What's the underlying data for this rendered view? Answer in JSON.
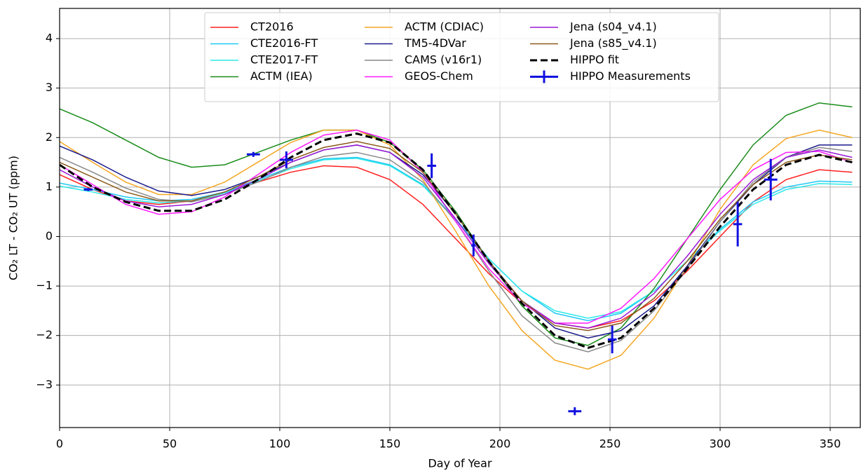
{
  "chart_data": {
    "type": "line",
    "x_label": "Day of Year",
    "y_label": "CO₂ LT - CO₂ UT (ppm)",
    "x": [
      0,
      15,
      30,
      45,
      60,
      75,
      90,
      105,
      120,
      135,
      150,
      165,
      180,
      195,
      210,
      225,
      240,
      255,
      270,
      285,
      300,
      315,
      330,
      345,
      360
    ],
    "series": [
      {
        "name": "CT2016",
        "color": "#ff2020",
        "values": [
          1.25,
          0.95,
          0.72,
          0.65,
          0.72,
          0.9,
          1.1,
          1.3,
          1.43,
          1.4,
          1.15,
          0.65,
          -0.05,
          -0.75,
          -1.35,
          -1.75,
          -1.85,
          -1.7,
          -1.3,
          -0.7,
          0.0,
          0.7,
          1.15,
          1.35,
          1.3
        ]
      },
      {
        "name": "CTE2016-FT",
        "color": "#1ec8f5",
        "values": [
          1.08,
          0.95,
          0.8,
          0.72,
          0.75,
          0.9,
          1.15,
          1.4,
          1.57,
          1.6,
          1.45,
          1.05,
          0.35,
          -0.45,
          -1.1,
          -1.55,
          -1.7,
          -1.55,
          -1.1,
          -0.5,
          0.15,
          0.7,
          1.0,
          1.12,
          1.1
        ]
      },
      {
        "name": "CTE2017-FT",
        "color": "#2ee8e8",
        "values": [
          1.02,
          0.9,
          0.75,
          0.68,
          0.72,
          0.88,
          1.12,
          1.37,
          1.55,
          1.58,
          1.43,
          1.03,
          0.33,
          -0.45,
          -1.1,
          -1.5,
          -1.65,
          -1.52,
          -1.1,
          -0.5,
          0.12,
          0.65,
          0.95,
          1.07,
          1.05
        ]
      },
      {
        "name": "ACTM (IEA)",
        "color": "#1a8c1a",
        "values": [
          2.58,
          2.3,
          1.95,
          1.6,
          1.4,
          1.45,
          1.7,
          1.95,
          2.15,
          2.15,
          1.9,
          1.35,
          0.5,
          -0.5,
          -1.4,
          -2.05,
          -2.2,
          -1.85,
          -1.05,
          -0.05,
          0.95,
          1.85,
          2.45,
          2.7,
          2.62
        ]
      },
      {
        "name": "ACTM (CDIAC)",
        "color": "#f5a623",
        "values": [
          1.92,
          1.5,
          1.1,
          0.85,
          0.85,
          1.1,
          1.5,
          1.9,
          2.15,
          2.15,
          1.85,
          1.15,
          0.1,
          -1.0,
          -1.9,
          -2.5,
          -2.68,
          -2.4,
          -1.65,
          -0.6,
          0.55,
          1.45,
          1.98,
          2.15,
          2.0
        ]
      },
      {
        "name": "TM5-4DVar",
        "color": "#1a1a8c",
        "values": [
          1.83,
          1.55,
          1.2,
          0.92,
          0.83,
          0.95,
          1.2,
          1.5,
          1.75,
          1.85,
          1.7,
          1.25,
          0.45,
          -0.5,
          -1.3,
          -1.85,
          -2.05,
          -1.9,
          -1.4,
          -0.6,
          0.3,
          1.05,
          1.6,
          1.85,
          1.85
        ]
      },
      {
        "name": "CAMS (v16r1)",
        "color": "#888888",
        "values": [
          1.6,
          1.3,
          0.98,
          0.75,
          0.7,
          0.85,
          1.1,
          1.4,
          1.62,
          1.7,
          1.55,
          1.1,
          0.3,
          -0.7,
          -1.6,
          -2.15,
          -2.33,
          -2.1,
          -1.5,
          -0.65,
          0.3,
          1.1,
          1.6,
          1.8,
          1.72
        ]
      },
      {
        "name": "GEOS-Chem",
        "color": "#ff1aff",
        "values": [
          1.45,
          1.05,
          0.65,
          0.45,
          0.5,
          0.8,
          1.25,
          1.7,
          2.05,
          2.15,
          1.95,
          1.3,
          0.3,
          -0.65,
          -1.35,
          -1.75,
          -1.75,
          -1.45,
          -0.85,
          -0.05,
          0.75,
          1.35,
          1.7,
          1.72,
          1.5
        ]
      },
      {
        "name": "Jena (s04_v4.1)",
        "color": "#9a1ad6",
        "values": [
          1.35,
          1.0,
          0.72,
          0.6,
          0.65,
          0.85,
          1.15,
          1.5,
          1.75,
          1.85,
          1.7,
          1.2,
          0.35,
          -0.55,
          -1.3,
          -1.75,
          -1.85,
          -1.65,
          -1.15,
          -0.4,
          0.45,
          1.15,
          1.6,
          1.75,
          1.6
        ]
      },
      {
        "name": "Jena (s85_v4.1)",
        "color": "#8b5a1a",
        "values": [
          1.5,
          1.2,
          0.9,
          0.72,
          0.72,
          0.9,
          1.2,
          1.55,
          1.8,
          1.92,
          1.78,
          1.3,
          0.45,
          -0.5,
          -1.3,
          -1.8,
          -1.9,
          -1.75,
          -1.25,
          -0.5,
          0.35,
          1.05,
          1.5,
          1.65,
          1.55
        ]
      },
      {
        "name": "HIPPO fit",
        "color": "#000000",
        "dashed": true,
        "values": [
          1.45,
          1.0,
          0.7,
          0.52,
          0.52,
          0.75,
          1.15,
          1.6,
          1.95,
          2.08,
          1.9,
          1.35,
          0.45,
          -0.5,
          -1.35,
          -2.0,
          -2.25,
          -2.05,
          -1.45,
          -0.65,
          0.2,
          0.95,
          1.45,
          1.65,
          1.5
        ]
      }
    ],
    "points": {
      "name": "HIPPO Measurements",
      "color": "#1010e0",
      "x": [
        13,
        88,
        103,
        169,
        188,
        234,
        251,
        308,
        323
      ],
      "y": [
        0.95,
        1.66,
        1.55,
        1.43,
        -0.18,
        -3.53,
        -2.08,
        0.25,
        1.15
      ],
      "yerr": [
        0.03,
        0.05,
        0.17,
        0.25,
        0.22,
        0.08,
        0.28,
        0.45,
        0.42
      ],
      "xerr": [
        2,
        3,
        3,
        2,
        1,
        3,
        2,
        2,
        3
      ]
    },
    "xlim": [
      0,
      364
    ],
    "ylim": [
      -3.86,
      4.61
    ],
    "xticks": [
      0,
      50,
      100,
      150,
      200,
      250,
      300,
      350
    ],
    "yticks": [
      {
        "value": -3,
        "label": "−3"
      },
      {
        "value": -2,
        "label": "−2"
      },
      {
        "value": -1,
        "label": "−1"
      },
      0,
      1,
      2,
      3,
      4
    ],
    "grid": true,
    "legend": "upper center"
  }
}
